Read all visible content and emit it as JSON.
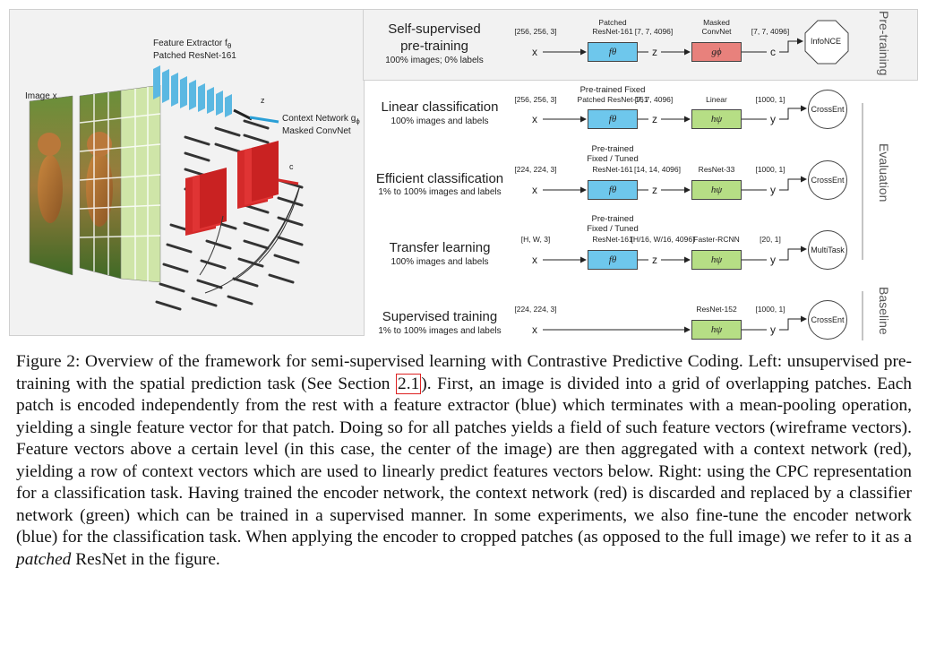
{
  "left_panel": {
    "image_label": "Image x",
    "feature_extractor_label": "Feature Extractor f",
    "feature_extractor_sub": "θ",
    "feature_extractor_net": "Patched ResNet-161",
    "z_label": "z",
    "context_label": "Context Network g",
    "context_sub": "ϕ",
    "context_net": "Masked ConvNet",
    "c_label": "c"
  },
  "rows": [
    {
      "title_line1": "Self-supervised",
      "title_line2": "pre-training",
      "subtitle": "100% images; 0% labels",
      "dim_in": "[256, 256, 3]",
      "enc_label_1": "Patched",
      "enc_label_2": "ResNet-161",
      "dim_mid": "[7, 7, 4096]",
      "head_label_1": "Masked",
      "head_label_2": "ConvNet",
      "dim_out": "[7, 7, 4096]",
      "x": "x",
      "z": "z",
      "out": "c",
      "enc_box": "fθ",
      "head_box": "gϕ",
      "terminal": "InfoNCE"
    },
    {
      "title_line1": "Linear classification",
      "subtitle": "100% images and labels",
      "dim_in": "[256, 256, 3]",
      "enc_label_1": "Pre-trained Fixed",
      "enc_label_2": "Patched ResNet-161",
      "dim_mid": "[7, 7, 4096]",
      "head_label_1": "Linear",
      "dim_out": "[1000, 1]",
      "x": "x",
      "z": "z",
      "out": "y",
      "enc_box": "fθ",
      "head_box": "hψ",
      "terminal_1": "Cross",
      "terminal_2": "Ent"
    },
    {
      "title_line1": "Efficient classification",
      "subtitle": "1% to 100% images and labels",
      "dim_in": "[224, 224, 3]",
      "enc_label_1": "Pre-trained",
      "enc_label_2": "Fixed / Tuned",
      "enc_label_3": "ResNet-161",
      "dim_mid": "[14, 14, 4096]",
      "head_label_1": "ResNet-33",
      "dim_out": "[1000, 1]",
      "x": "x",
      "z": "z",
      "out": "y",
      "enc_box": "fθ",
      "head_box": "hψ",
      "terminal_1": "Cross",
      "terminal_2": "Ent"
    },
    {
      "title_line1": "Transfer learning",
      "subtitle": "100% images and labels",
      "dim_in": "[H, W, 3]",
      "enc_label_1": "Pre-trained",
      "enc_label_2": "Fixed / Tuned",
      "enc_label_3": "ResNet-161",
      "dim_mid": "[H/16, W/16, 4096]",
      "head_label_1": "Faster-RCNN",
      "dim_out": "[20, 1]",
      "x": "x",
      "z": "z",
      "out": "y",
      "enc_box": "fθ",
      "head_box": "hψ",
      "terminal_1": "Multi",
      "terminal_2": "Task"
    },
    {
      "title_line1": "Supervised training",
      "subtitle": "1% to 100% images and labels",
      "dim_in": "[224, 224, 3]",
      "head_label_1": "ResNet-152",
      "dim_out": "[1000, 1]",
      "x": "x",
      "out": "y",
      "head_box": "hψ",
      "terminal_1": "Cross",
      "terminal_2": "Ent"
    }
  ],
  "side_labels": {
    "pretraining": "Pre-training",
    "evaluation": "Evaluation",
    "baseline": "Baseline"
  },
  "caption": {
    "part1": "Figure 2:   Overview of the framework for semi-supervised learning with Contrastive Predictive Coding. Left: unsupervised pre-training with the spatial prediction task (See Section ",
    "ref": "2.1",
    "part2": "). First, an image is divided into a grid of overlapping patches. Each patch is encoded independently from the rest with a feature extractor (blue) which terminates with a mean-pooling operation, yielding a single feature vector for that patch. Doing so for all patches yields a field of such feature vectors (wireframe vectors). Feature vectors above a certain level (in this case, the center of the image) are then aggregated with a context network (red), yielding a row of context vectors which are used to linearly predict features vectors below. Right: using the CPC representation for a classification task. Having trained the encoder network, the context network (red) is discarded and replaced by a classifier network (green) which can be trained in a supervised manner. In some experiments, we also fine-tune the encoder network (blue) for the classification task. When applying the encoder to cropped patches (as opposed to the full image) we refer to it as a ",
    "emph": "patched",
    "part3": " ResNet in the figure."
  },
  "colors": {
    "encoder": "#6ec7ec",
    "context": "#e8817c",
    "classifier": "#b6de85"
  }
}
